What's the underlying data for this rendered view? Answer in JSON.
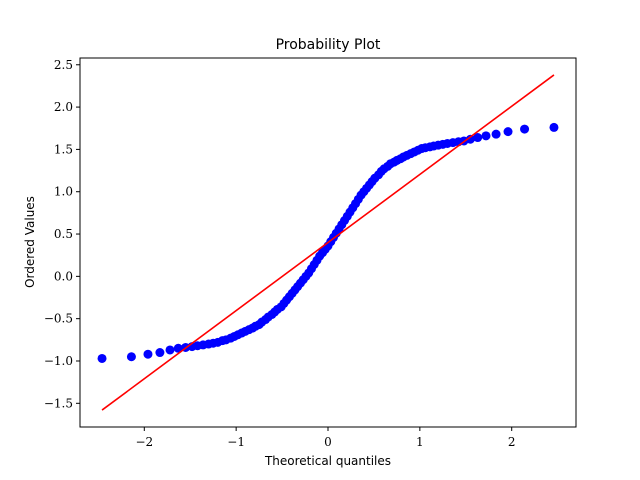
{
  "chart_data": {
    "type": "scatter",
    "title": "Probability Plot",
    "xlabel": "Theoretical quantiles",
    "ylabel": "Ordered Values",
    "xlim": [
      -2.7,
      2.7
    ],
    "ylim": [
      -1.78,
      2.58
    ],
    "xticks": [
      -2,
      -1,
      0,
      1,
      2
    ],
    "xtick_labels": [
      "−2",
      "−1",
      "0",
      "1",
      "2"
    ],
    "yticks": [
      -1.5,
      -1.0,
      -0.5,
      0.0,
      0.5,
      1.0,
      1.5,
      2.0,
      2.5
    ],
    "ytick_labels": [
      "−1.5",
      "−1.0",
      "−0.5",
      "0.0",
      "0.5",
      "1.0",
      "1.5",
      "2.0",
      "2.5"
    ],
    "grid": false,
    "series": [
      {
        "kind": "points",
        "color": "#0000ff",
        "x": [
          -2.46,
          -2.14,
          -1.96,
          -1.83,
          -1.72,
          -1.63,
          -1.55,
          -1.48,
          -1.42,
          -1.36,
          -1.3,
          -1.25,
          -1.2,
          -1.15,
          -1.11,
          -1.06,
          -1.02,
          -0.98,
          -0.94,
          -0.9,
          -0.86,
          -0.82,
          -0.79,
          -0.75,
          -0.72,
          -0.68,
          -0.65,
          -0.61,
          -0.58,
          -0.55,
          -0.51,
          -0.48,
          -0.45,
          -0.42,
          -0.39,
          -0.36,
          -0.33,
          -0.3,
          -0.27,
          -0.24,
          -0.21,
          -0.18,
          -0.15,
          -0.12,
          -0.09,
          -0.06,
          -0.03,
          0.0,
          0.03,
          0.06,
          0.09,
          0.12,
          0.15,
          0.18,
          0.21,
          0.24,
          0.27,
          0.3,
          0.33,
          0.36,
          0.39,
          0.42,
          0.45,
          0.48,
          0.51,
          0.55,
          0.58,
          0.61,
          0.65,
          0.68,
          0.72,
          0.75,
          0.79,
          0.82,
          0.86,
          0.9,
          0.94,
          0.98,
          1.02,
          1.06,
          1.11,
          1.15,
          1.2,
          1.25,
          1.3,
          1.36,
          1.42,
          1.48,
          1.55,
          1.63,
          1.72,
          1.83,
          1.96,
          2.14,
          2.46
        ],
        "y": [
          -0.97,
          -0.95,
          -0.92,
          -0.9,
          -0.87,
          -0.85,
          -0.84,
          -0.83,
          -0.82,
          -0.81,
          -0.8,
          -0.79,
          -0.78,
          -0.76,
          -0.75,
          -0.73,
          -0.71,
          -0.69,
          -0.67,
          -0.65,
          -0.63,
          -0.61,
          -0.59,
          -0.57,
          -0.54,
          -0.51,
          -0.48,
          -0.45,
          -0.42,
          -0.39,
          -0.36,
          -0.32,
          -0.28,
          -0.24,
          -0.2,
          -0.16,
          -0.12,
          -0.08,
          -0.04,
          0.0,
          0.04,
          0.09,
          0.14,
          0.19,
          0.24,
          0.28,
          0.32,
          0.36,
          0.41,
          0.46,
          0.51,
          0.56,
          0.61,
          0.66,
          0.71,
          0.76,
          0.81,
          0.86,
          0.91,
          0.96,
          1.0,
          1.04,
          1.08,
          1.12,
          1.16,
          1.2,
          1.24,
          1.27,
          1.3,
          1.33,
          1.35,
          1.37,
          1.39,
          1.41,
          1.43,
          1.45,
          1.47,
          1.49,
          1.51,
          1.52,
          1.53,
          1.54,
          1.55,
          1.56,
          1.57,
          1.58,
          1.59,
          1.6,
          1.62,
          1.64,
          1.66,
          1.68,
          1.71,
          1.74,
          1.76
        ]
      },
      {
        "kind": "fit-line",
        "color": "#ff0000",
        "x": [
          -2.46,
          2.46
        ],
        "y": [
          -1.58,
          2.38
        ]
      }
    ]
  }
}
